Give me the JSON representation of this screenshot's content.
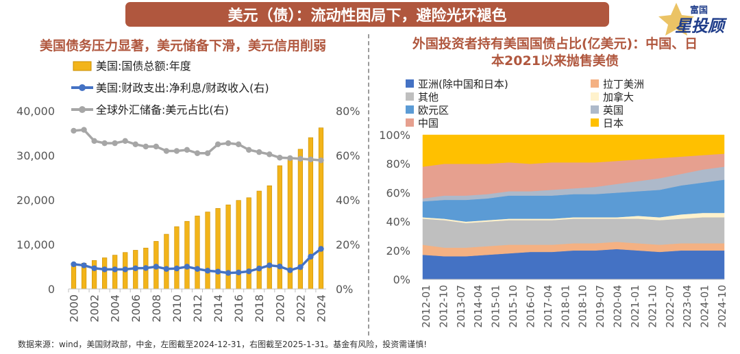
{
  "header": {
    "banner": "美元（债）：流动性困局下，避险光环褪色",
    "brand_top": "富国",
    "brand_main": "星投顾"
  },
  "footnote": "数据来源：wind，美国财政部，中金，左图截至2024-12-31，右图截至2025-1-31。基金有风险，投资需谨慎!",
  "colors": {
    "bar": "#f2b41a",
    "bar_edge": "#c98d00",
    "line_blue": "#4472c4",
    "line_gray": "#a6a6a6",
    "asia": "#4472c4",
    "latam": "#f4b183",
    "other": "#bfbfbf",
    "canada": "#fff2cc",
    "euro": "#5b9bd5",
    "uk": "#adb9ca",
    "china": "#e6a08f",
    "japan": "#ffc000"
  },
  "chart_data": [
    {
      "type": "bar",
      "title": "美国债务压力显著，美元储备下滑，美元信用削弱",
      "categories": [
        "2000",
        "2001",
        "2002",
        "2003",
        "2004",
        "2005",
        "2006",
        "2007",
        "2008",
        "2009",
        "2010",
        "2011",
        "2012",
        "2013",
        "2014",
        "2015",
        "2016",
        "2017",
        "2018",
        "2019",
        "2020",
        "2021",
        "2022",
        "2023",
        "2024"
      ],
      "x_tick_labels": [
        "2000",
        "2002",
        "2004",
        "2006",
        "2008",
        "2010",
        "2012",
        "2014",
        "2016",
        "2018",
        "2020",
        "2022",
        "2024"
      ],
      "series": [
        {
          "name": "美国:国债总额:年度",
          "axis": "left",
          "kind": "bar",
          "values": [
            5700,
            5800,
            6400,
            7000,
            7600,
            8200,
            8700,
            9200,
            10700,
            12300,
            14000,
            15200,
            16400,
            17300,
            18100,
            18900,
            19900,
            20500,
            22000,
            23200,
            27700,
            29600,
            31400,
            34000,
            36200
          ]
        },
        {
          "name": "美国:财政支出:净利息/财政收入(右)",
          "axis": "right",
          "kind": "line",
          "values": [
            11.1,
            10.6,
            9.3,
            8.8,
            8.8,
            8.8,
            9.3,
            9.4,
            10.0,
            9.0,
            9.2,
            10.0,
            9.0,
            8.2,
            7.8,
            7.2,
            7.4,
            7.9,
            9.2,
            10.6,
            10.1,
            8.4,
            9.8,
            14.5,
            18.0
          ]
        },
        {
          "name": "全球外汇储备:美元占比(右)",
          "axis": "right",
          "kind": "line",
          "values": [
            71.1,
            71.5,
            66.5,
            65.5,
            65.5,
            66.5,
            65.0,
            64.0,
            64.0,
            62.0,
            62.0,
            62.5,
            61.0,
            61.0,
            65.0,
            65.5,
            65.0,
            62.5,
            61.5,
            60.5,
            59.0,
            58.8,
            58.5,
            58.2,
            57.8
          ]
        }
      ],
      "y_left": {
        "min": 0,
        "max": 40000,
        "ticks": [
          "0",
          "10,000",
          "20,000",
          "30,000",
          "40,000"
        ]
      },
      "y_right": {
        "min": 0,
        "max": 80,
        "ticks": [
          "0%",
          "20%",
          "40%",
          "60%",
          "80%"
        ]
      },
      "legend_placement": "top-left"
    },
    {
      "type": "area",
      "stacked_percent": true,
      "title": "外国投资者持有美国国债占比(亿美元)：中国、日本2021以来抛售美债",
      "title_line1": "外国投资者持有美国国债占比(亿美元)：中国、日",
      "title_line2": "本2021以来抛售美债",
      "x_tick_labels": [
        "2012-01",
        "2012-10",
        "2013-07",
        "2014-04",
        "2015-01",
        "2015-10",
        "2016-07",
        "2017-04",
        "2018-01",
        "2018-10",
        "2019-07",
        "2020-04",
        "2021-01",
        "2021-10",
        "2022-07",
        "2023-04",
        "2024-01",
        "2024-10"
      ],
      "y": {
        "min": 0,
        "max": 100,
        "ticks": [
          "0%",
          "20%",
          "40%",
          "60%",
          "80%",
          "100%"
        ]
      },
      "legend": [
        "亚洲(除中国和日本)",
        "拉丁美洲",
        "其他",
        "加拿大",
        "欧元区",
        "英国",
        "中国",
        "日本"
      ],
      "series_order_bottom_to_top": [
        "亚洲(除中国和日本)",
        "拉丁美洲",
        "其他",
        "加拿大",
        "欧元区",
        "英国",
        "中国",
        "日本"
      ],
      "series": [
        {
          "name": "亚洲(除中国和日本)",
          "values": [
            17,
            16,
            16,
            17,
            18,
            19,
            19,
            20,
            20,
            21,
            20,
            19,
            20,
            20,
            20
          ]
        },
        {
          "name": "拉丁美洲",
          "values": [
            7,
            6,
            6,
            6,
            6,
            5,
            5,
            5,
            5,
            5,
            5,
            5,
            5,
            5,
            5
          ]
        },
        {
          "name": "其他",
          "values": [
            18,
            19,
            17,
            17,
            17,
            17,
            17,
            17,
            17,
            16,
            17,
            17,
            17,
            18,
            18
          ]
        },
        {
          "name": "加拿大",
          "values": [
            1,
            1,
            1,
            1,
            1,
            1,
            1,
            1,
            1,
            1,
            2,
            2,
            3,
            3,
            3
          ]
        },
        {
          "name": "欧元区",
          "values": [
            11,
            13,
            15,
            15,
            16,
            16,
            16,
            16,
            16,
            17,
            17,
            19,
            20,
            21,
            23
          ]
        },
        {
          "name": "英国",
          "values": [
            2,
            3,
            3,
            3,
            3,
            3,
            4,
            4,
            5,
            6,
            7,
            8,
            8,
            9,
            9
          ]
        },
        {
          "name": "中国",
          "values": [
            22,
            22,
            22,
            21,
            20,
            19,
            19,
            18,
            17,
            16,
            15,
            14,
            12,
            10,
            9
          ]
        },
        {
          "name": "日本",
          "values": [
            22,
            20,
            20,
            20,
            19,
            20,
            19,
            19,
            19,
            18,
            17,
            16,
            15,
            14,
            13
          ]
        }
      ]
    }
  ]
}
